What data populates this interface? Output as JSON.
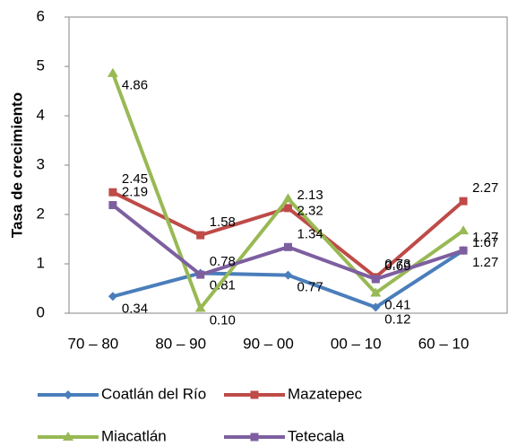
{
  "chart_data": {
    "type": "line",
    "y_label": "Tasa de crecimiento",
    "categories": [
      "70 – 80",
      "80 – 90",
      "90 – 00",
      "00 – 10",
      "60 – 10"
    ],
    "ylim": [
      0,
      6
    ],
    "yticks": [
      0,
      1,
      2,
      3,
      4,
      5,
      6
    ],
    "grid": false,
    "legend": "bottom",
    "series": [
      {
        "name": "Coatlán del Río",
        "color": "#4a7ebb",
        "marker": "diamond",
        "values": [
          0.34,
          0.81,
          0.77,
          0.12,
          1.27
        ],
        "value_labels": [
          "0.34",
          "0.81",
          "0.77",
          "0.12",
          "1.27"
        ]
      },
      {
        "name": "Mazatepec",
        "color": "#be4b48",
        "marker": "square",
        "values": [
          2.45,
          1.58,
          2.13,
          0.73,
          2.27
        ],
        "value_labels": [
          "2.45",
          "1.58",
          "2.13",
          "0.73",
          "2.27"
        ]
      },
      {
        "name": "Miacatlán",
        "color": "#98b954",
        "marker": "triangle",
        "values": [
          4.86,
          0.1,
          2.32,
          0.41,
          1.67
        ],
        "value_labels": [
          "4.86",
          "0.10",
          "2.32",
          "0.41",
          "1.67"
        ]
      },
      {
        "name": "Tetecala",
        "color": "#7d5fa0",
        "marker": "square",
        "values": [
          2.19,
          0.78,
          1.34,
          0.69,
          1.27
        ],
        "value_labels": [
          "2.19",
          "0.78",
          "1.34",
          "0.69",
          "1.27"
        ]
      }
    ]
  }
}
